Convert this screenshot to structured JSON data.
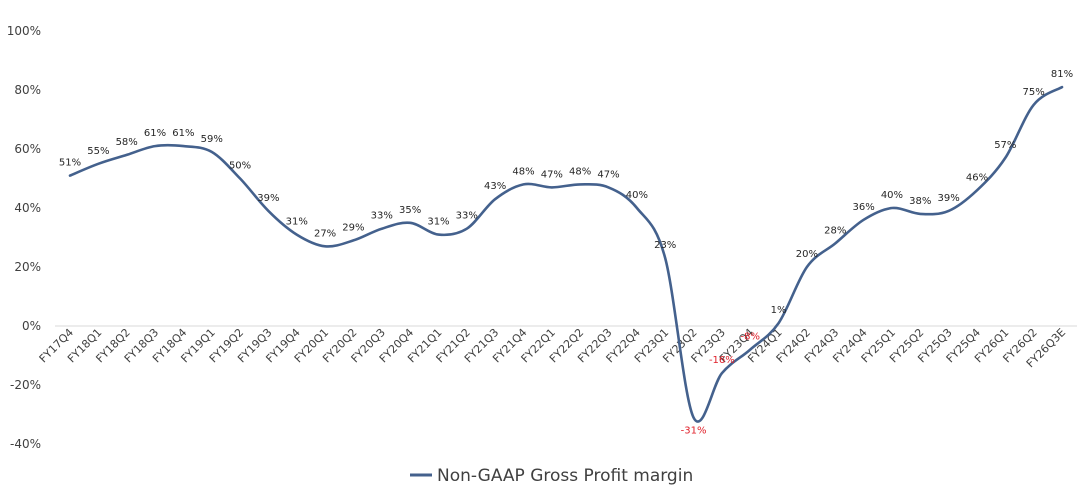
{
  "chart_data": {
    "type": "line",
    "title": "",
    "xlabel": "",
    "ylabel": "",
    "ylim": [
      -40,
      100
    ],
    "yticks": [
      -40,
      -20,
      0,
      20,
      40,
      60,
      80,
      100
    ],
    "ytick_labels": [
      "-40%",
      "-20%",
      "0%",
      "20%",
      "40%",
      "60%",
      "80%",
      "100%"
    ],
    "grid": false,
    "legend_position": "bottom",
    "categories": [
      "FY17Q4",
      "FY18Q1",
      "FY18Q2",
      "FY18Q3",
      "FY18Q4",
      "FY19Q1",
      "FY19Q2",
      "FY19Q3",
      "FY19Q4",
      "FY20Q1",
      "FY20Q2",
      "FY20Q3",
      "FY20Q4",
      "FY21Q1",
      "FY21Q2",
      "FY21Q3",
      "FY21Q4",
      "FY22Q1",
      "FY22Q2",
      "FY22Q3",
      "FY22Q4",
      "FY23Q1",
      "FY23Q2",
      "FY23Q3",
      "FY23Q4",
      "FY24Q1",
      "FY24Q2",
      "FY24Q3",
      "FY24Q4",
      "FY25Q1",
      "FY25Q2",
      "FY25Q3",
      "FY25Q4",
      "FY26Q1",
      "FY26Q2",
      "FY26Q3E"
    ],
    "series": [
      {
        "name": "Non-GAAP Gross Profit margin",
        "color": "#44618d",
        "values": [
          51,
          55,
          58,
          61,
          61,
          59,
          50,
          39,
          31,
          27,
          29,
          33,
          35,
          31,
          33,
          43,
          48,
          47,
          48,
          47,
          40,
          23,
          -31,
          -16,
          -8,
          1,
          20,
          28,
          36,
          40,
          38,
          39,
          46,
          57,
          75,
          81
        ],
        "labels": [
          "51%",
          "55%",
          "58%",
          "61%",
          "61%",
          "59%",
          "50%",
          "39%",
          "31%",
          "27%",
          "29%",
          "33%",
          "35%",
          "31%",
          "33%",
          "43%",
          "48%",
          "47%",
          "48%",
          "47%",
          "40%",
          "23%",
          "-31%",
          "-16%",
          "-8%",
          "1%",
          "20%",
          "28%",
          "36%",
          "40%",
          "38%",
          "39%",
          "46%",
          "57%",
          "75%",
          "81%"
        ]
      }
    ],
    "negative_label_color": "#e0202a"
  }
}
